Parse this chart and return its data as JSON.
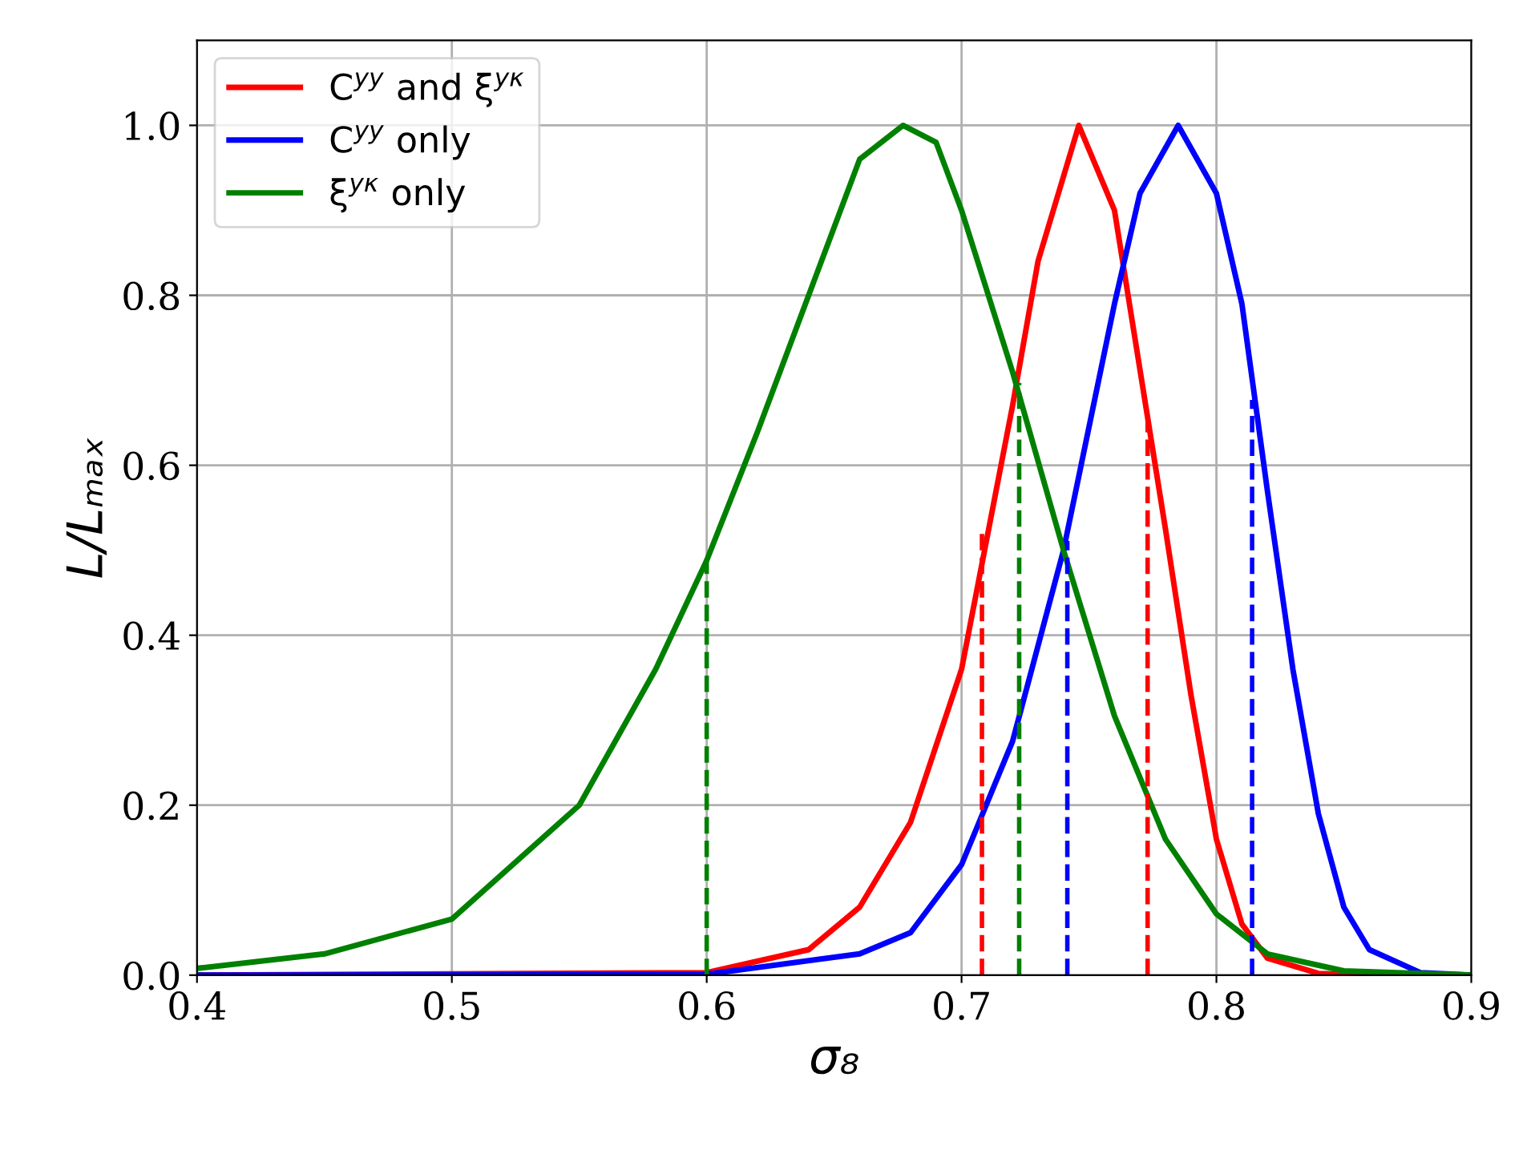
{
  "chart_data": {
    "type": "line",
    "xlabel": "σ₈",
    "ylabel": "L/Lₘₐₓ",
    "xlim": [
      0.4,
      0.9
    ],
    "ylim": [
      0,
      1.1
    ],
    "xticks": [
      {
        "value": 0.4,
        "label": "0.4"
      },
      {
        "value": 0.5,
        "label": "0.5"
      },
      {
        "value": 0.6,
        "label": "0.6"
      },
      {
        "value": 0.7,
        "label": "0.7"
      },
      {
        "value": 0.8,
        "label": "0.8"
      },
      {
        "value": 0.9,
        "label": "0.9"
      }
    ],
    "yticks": [
      {
        "value": 0,
        "label": "0.0"
      },
      {
        "value": 0.2,
        "label": "0.2"
      },
      {
        "value": 0.4,
        "label": "0.4"
      },
      {
        "value": 0.6,
        "label": "0.6"
      },
      {
        "value": 0.8,
        "label": "0.8"
      },
      {
        "value": 1.0,
        "label": "1.0"
      }
    ],
    "grid": true,
    "legend": "top left",
    "line_style": "solid",
    "marker": "none",
    "series": [
      {
        "name": "C$^{yy}$ and ξ$^{yκ}$",
        "color": "#ff0000",
        "x": [
          0.4,
          0.6,
          0.64,
          0.66,
          0.68,
          0.7,
          0.72,
          0.73,
          0.746,
          0.76,
          0.78,
          0.79,
          0.8,
          0.81,
          0.82,
          0.84,
          0.86,
          0.9
        ],
        "values": [
          0,
          0.003,
          0.03,
          0.08,
          0.18,
          0.36,
          0.67,
          0.84,
          1.0,
          0.9,
          0.525,
          0.33,
          0.16,
          0.06,
          0.02,
          0.002,
          0,
          0
        ]
      },
      {
        "name": "C$^{yy}$ only",
        "color": "#0000ff",
        "x": [
          0.4,
          0.6,
          0.66,
          0.68,
          0.7,
          0.72,
          0.74,
          0.76,
          0.77,
          0.785,
          0.8,
          0.81,
          0.82,
          0.83,
          0.84,
          0.85,
          0.86,
          0.88,
          0.9
        ],
        "values": [
          0,
          0.001,
          0.025,
          0.05,
          0.13,
          0.275,
          0.5,
          0.79,
          0.92,
          1.0,
          0.92,
          0.79,
          0.57,
          0.36,
          0.19,
          0.08,
          0.03,
          0.003,
          0
        ]
      },
      {
        "name": "ξ$^{yκ}$ only",
        "color": "#008000",
        "x": [
          0.4,
          0.45,
          0.5,
          0.55,
          0.58,
          0.6,
          0.62,
          0.64,
          0.66,
          0.677,
          0.69,
          0.7,
          0.72,
          0.74,
          0.76,
          0.78,
          0.8,
          0.82,
          0.85,
          0.9
        ],
        "values": [
          0.008,
          0.025,
          0.066,
          0.2,
          0.36,
          0.488,
          0.64,
          0.8,
          0.96,
          1.0,
          0.98,
          0.9,
          0.71,
          0.5,
          0.305,
          0.16,
          0.072,
          0.025,
          0.005,
          0
        ]
      },
      {
        "color": "#008000",
        "line_style": "dashed",
        "x": [
          0.6,
          0.6
        ],
        "values": [
          0,
          0.488
        ]
      },
      {
        "color": "#008000",
        "line_style": "dashed",
        "x": [
          0.7226,
          0.7226
        ],
        "values": [
          0,
          0.697
        ]
      },
      {
        "color": "#ff0000",
        "line_style": "dashed",
        "x": [
          0.708,
          0.708
        ],
        "values": [
          0,
          0.522
        ]
      },
      {
        "color": "#ff0000",
        "line_style": "dashed",
        "x": [
          0.773,
          0.773
        ],
        "values": [
          0,
          0.653
        ]
      },
      {
        "color": "#0000ff",
        "line_style": "dashed",
        "x": [
          0.7415,
          0.7415
        ],
        "values": [
          0,
          0.511
        ]
      },
      {
        "color": "#0000ff",
        "line_style": "dashed",
        "x": [
          0.814,
          0.814
        ],
        "values": [
          0,
          0.677
        ]
      }
    ]
  }
}
